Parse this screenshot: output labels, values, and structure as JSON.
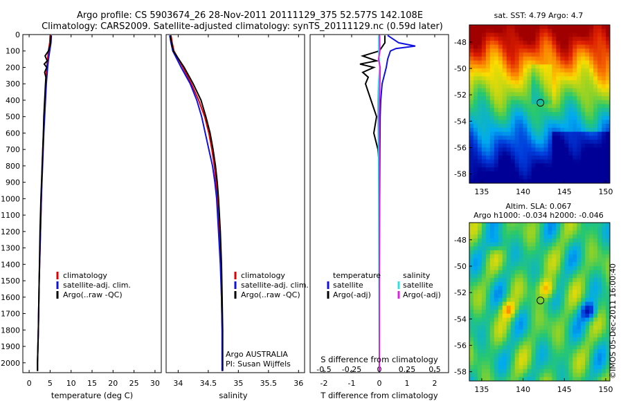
{
  "header": {
    "line1": "Argo profile: CS 5903674_26 28-Nov-2011 20111129_375 52.577S 142.108E",
    "line2": "Climatology: CARS2009. Satellite-adjusted climatology: synTS_20111129.nc (0.59d later)"
  },
  "colors": {
    "clim": "#e00000",
    "sat": "#1010e0",
    "argo": "#000000",
    "sal_sat": "#30e0e0",
    "sal_argo": "#e020e0"
  },
  "chart_data": [
    {
      "id": "temperature",
      "type": "line",
      "xlabel": "temperature (deg C)",
      "ylabel": "",
      "xlim": [
        -1.5,
        31.5
      ],
      "ylim": [
        2060,
        0
      ],
      "xticks": [
        0,
        5,
        10,
        15,
        20,
        25,
        30
      ],
      "yticks": [
        0,
        100,
        200,
        300,
        400,
        500,
        600,
        700,
        800,
        900,
        1000,
        1100,
        1200,
        1300,
        1400,
        1500,
        1600,
        1700,
        1800,
        1900,
        2000
      ],
      "legend": [
        "climatology",
        "satellite-adj. clim.",
        "Argo(..raw -QC)"
      ],
      "series": [
        {
          "name": "climatology",
          "color": "#e00000",
          "depth": [
            5,
            50,
            100,
            150,
            200,
            300,
            400,
            500,
            600,
            800,
            1000,
            1200,
            1500,
            1800,
            2000,
            2050
          ],
          "values": [
            5.0,
            4.9,
            4.6,
            4.4,
            4.2,
            4.0,
            3.8,
            3.6,
            3.4,
            3.1,
            2.9,
            2.7,
            2.4,
            2.2,
            2.0,
            2.0
          ]
        },
        {
          "name": "satellite-adj. clim.",
          "color": "#1010e0",
          "depth": [
            5,
            50,
            100,
            150,
            200,
            300,
            400,
            500,
            600,
            800,
            1000,
            1200,
            1500,
            1800,
            2000,
            2050
          ],
          "values": [
            5.3,
            5.2,
            4.9,
            4.6,
            4.4,
            4.1,
            3.9,
            3.7,
            3.5,
            3.2,
            2.9,
            2.7,
            2.4,
            2.2,
            2.0,
            2.0
          ]
        },
        {
          "name": "Argo(..raw -QC)",
          "color": "#000000",
          "depth": [
            5,
            50,
            100,
            130,
            160,
            180,
            200,
            230,
            260,
            300,
            400,
            500,
            600,
            800,
            1000,
            1200,
            1500,
            1800,
            2000,
            2050
          ],
          "values": [
            5.2,
            5.1,
            4.6,
            3.8,
            4.3,
            3.6,
            4.2,
            3.7,
            4.0,
            3.9,
            3.7,
            3.5,
            3.4,
            3.1,
            2.8,
            2.6,
            2.4,
            2.2,
            2.0,
            2.0
          ]
        }
      ]
    },
    {
      "id": "salinity",
      "type": "line",
      "xlabel": "salinity",
      "ylabel": "",
      "xlim": [
        33.8,
        36.1
      ],
      "ylim": [
        2060,
        0
      ],
      "xticks": [
        34,
        34.5,
        35,
        35.5,
        36
      ],
      "legend": [
        "climatology",
        "satellite-adj. clim.",
        "Argo(..raw -QC)"
      ],
      "annotation": [
        "Argo AUSTRALIA",
        "PI: Susan Wijffels"
      ],
      "series": [
        {
          "name": "climatology",
          "color": "#e00000",
          "depth": [
            5,
            50,
            100,
            200,
            300,
            400,
            500,
            600,
            700,
            800,
            900,
            1000,
            1200,
            1400,
            1600,
            1800,
            2050
          ],
          "values": [
            33.88,
            33.9,
            33.93,
            34.08,
            34.22,
            34.34,
            34.44,
            34.51,
            34.56,
            34.6,
            34.63,
            34.65,
            34.68,
            34.71,
            34.72,
            34.73,
            34.73
          ]
        },
        {
          "name": "satellite-adj. clim.",
          "color": "#1010e0",
          "depth": [
            5,
            50,
            100,
            200,
            300,
            400,
            500,
            600,
            700,
            800,
            900,
            1000,
            1200,
            1400,
            1600,
            1800,
            2050
          ],
          "values": [
            33.86,
            33.88,
            33.91,
            34.05,
            34.2,
            34.31,
            34.39,
            34.45,
            34.51,
            34.57,
            34.61,
            34.64,
            34.67,
            34.7,
            34.72,
            34.73,
            34.73
          ]
        },
        {
          "name": "Argo(..raw -QC)",
          "color": "#000000",
          "depth": [
            5,
            50,
            100,
            200,
            300,
            400,
            500,
            600,
            700,
            800,
            900,
            1000,
            1200,
            1400,
            1600,
            1800,
            2050
          ],
          "values": [
            33.87,
            33.89,
            33.92,
            34.1,
            34.25,
            34.38,
            34.46,
            34.53,
            34.58,
            34.62,
            34.65,
            34.67,
            34.7,
            34.72,
            34.73,
            34.74,
            34.74
          ]
        }
      ]
    },
    {
      "id": "difference",
      "type": "line",
      "xlabel": "T difference from climatology",
      "xlabel_top": "S difference from climatology",
      "xlim": [
        -2.5,
        2.5
      ],
      "ylim": [
        2060,
        0
      ],
      "xticks": [
        -2,
        -1,
        0,
        1,
        2
      ],
      "xticks_top_labels": [
        "-0.5",
        "-0.25",
        "0",
        "0.25",
        "0.5"
      ],
      "legend_left_title": "temperature",
      "legend_left": [
        "satellite",
        "Argo(-adj)"
      ],
      "legend_right_title": "salinity",
      "legend_right": [
        "satellite",
        "Argo(-adj)"
      ],
      "series": [
        {
          "name": "T satellite",
          "color": "#1010e0",
          "depth": [
            5,
            50,
            70,
            85,
            100,
            150,
            200,
            300,
            400,
            500,
            700,
            1000,
            1500,
            2000,
            2050
          ],
          "values": [
            0.3,
            0.7,
            1.3,
            0.6,
            0.4,
            0.3,
            0.25,
            0.1,
            0.05,
            0.03,
            0.02,
            0.01,
            0.0,
            0.0,
            0.0
          ]
        },
        {
          "name": "T Argo(-adj)",
          "color": "#000000",
          "depth": [
            5,
            50,
            100,
            130,
            160,
            180,
            200,
            230,
            260,
            300,
            400,
            500,
            600,
            700,
            800,
            1000,
            1500,
            2000,
            2050
          ],
          "values": [
            0.2,
            0.2,
            0.0,
            -0.6,
            -0.1,
            -0.7,
            -0.2,
            -0.6,
            -0.4,
            -0.5,
            -0.3,
            -0.1,
            -0.2,
            -0.05,
            0.0,
            0.0,
            0.0,
            0.0,
            0.0
          ]
        },
        {
          "name": "S satellite",
          "color": "#30e0e0",
          "depth": [
            5,
            100,
            200,
            300,
            400,
            500,
            700,
            1000,
            1500,
            2000,
            2050
          ],
          "values": [
            -0.02,
            -0.02,
            0.01,
            -0.03,
            -0.05,
            -0.05,
            -0.03,
            -0.02,
            -0.01,
            0.0,
            0.0
          ]
        },
        {
          "name": "S Argo(-adj)",
          "color": "#e020e0",
          "depth": [
            5,
            100,
            150,
            200,
            300,
            400,
            500,
            700,
            1000,
            1500,
            2000,
            2050
          ],
          "values": [
            0.01,
            0.02,
            -0.03,
            0.03,
            0.02,
            0.0,
            -0.01,
            0.0,
            0.0,
            0.0,
            0.0,
            0.0
          ]
        }
      ]
    },
    {
      "id": "sst_map",
      "type": "heatmap",
      "title": "sat. SST: 4.79 Argo: 4.7",
      "xlim": [
        133.5,
        150.5
      ],
      "ylim": [
        -58.7,
        -46.7
      ],
      "xticks": [
        135,
        140,
        145,
        150
      ],
      "yticks": [
        -48,
        -50,
        -52,
        -54,
        -56,
        -58
      ],
      "marker": [
        142.1,
        -52.6
      ]
    },
    {
      "id": "sla_map",
      "type": "heatmap",
      "title": "Altim. SLA: 0.067",
      "subtitle": "Argo h1000: -0.034 h2000: -0.046",
      "xlim": [
        133.5,
        150.5
      ],
      "ylim": [
        -58.7,
        -46.7
      ],
      "xticks": [
        135,
        140,
        145,
        150
      ],
      "yticks": [
        -48,
        -50,
        -52,
        -54,
        -56,
        -58
      ],
      "marker": [
        142.1,
        -52.6
      ]
    }
  ],
  "credit": "©IMOS 05-Dec-2011 16:00:40"
}
